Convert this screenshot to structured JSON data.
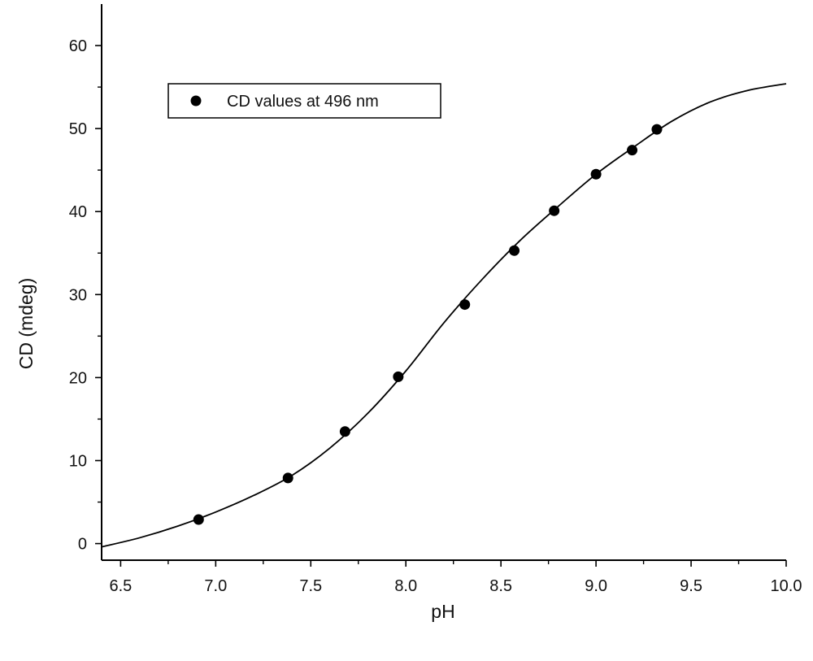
{
  "chart_data": {
    "type": "scatter",
    "title": "",
    "xlabel": "pH",
    "ylabel": "CD (mdeg)",
    "xlim": [
      6.4,
      10.0
    ],
    "ylim": [
      -2,
      65
    ],
    "x_ticks": [
      "6.5",
      "7.0",
      "7.5",
      "8.0",
      "8.5",
      "9.0",
      "9.5",
      "10.0"
    ],
    "x_tick_values": [
      6.5,
      7.0,
      7.5,
      8.0,
      8.5,
      9.0,
      9.5,
      10.0
    ],
    "y_ticks": [
      "0",
      "10",
      "20",
      "30",
      "40",
      "50",
      "60"
    ],
    "y_tick_values": [
      0,
      10,
      20,
      30,
      40,
      50,
      60
    ],
    "grid": false,
    "legend_position": "top-left",
    "colors": {
      "marker": "#000000",
      "line": "#000000",
      "axis": "#000000"
    },
    "series": [
      {
        "name": "CD values at 496 nm",
        "kind": "points",
        "x": [
          6.91,
          7.38,
          7.68,
          7.96,
          8.31,
          8.57,
          8.78,
          9.0,
          9.19,
          9.32
        ],
        "y": [
          2.9,
          7.9,
          13.5,
          20.1,
          28.8,
          35.3,
          40.1,
          44.5,
          47.4,
          49.9
        ]
      },
      {
        "kind": "fit-line",
        "x": [
          6.4,
          6.6,
          6.8,
          7.0,
          7.2,
          7.4,
          7.6,
          7.8,
          8.0,
          8.2,
          8.4,
          8.6,
          8.8,
          9.0,
          9.2,
          9.4,
          9.6,
          9.8,
          10.0
        ],
        "y": [
          -0.4,
          0.7,
          2.1,
          3.8,
          5.8,
          8.2,
          11.5,
          15.7,
          20.8,
          26.6,
          31.8,
          36.5,
          40.6,
          44.5,
          47.8,
          50.9,
          53.2,
          54.6,
          55.4
        ]
      }
    ]
  }
}
